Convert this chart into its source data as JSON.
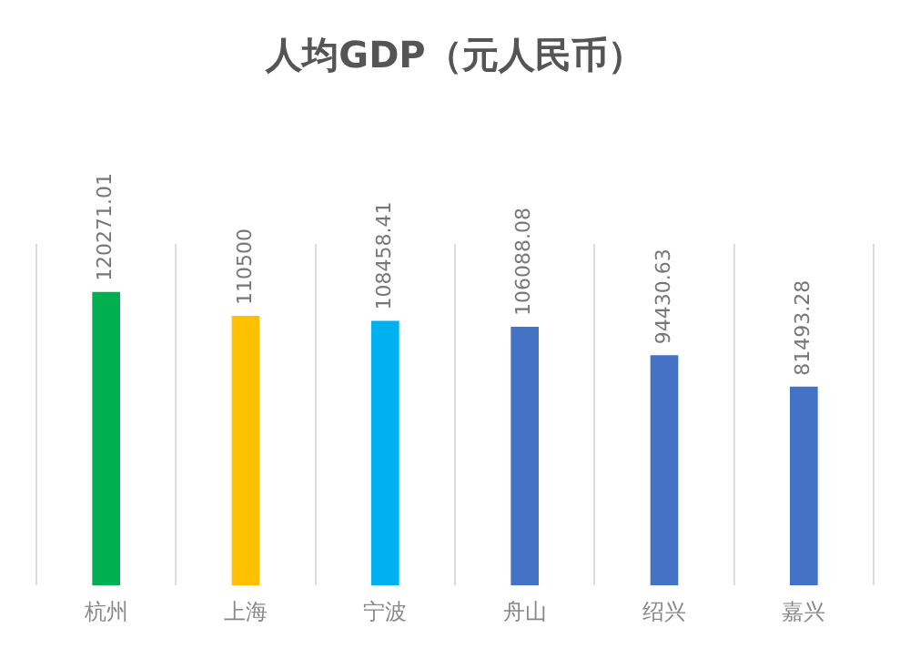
{
  "chart_data": {
    "type": "bar",
    "title": "人均GDP（元人民币）",
    "categories": [
      "杭州",
      "上海",
      "宁波",
      "舟山",
      "绍兴",
      "嘉兴"
    ],
    "values": [
      120271.01,
      110500,
      108458.41,
      106088.08,
      94430.63,
      81493.28
    ],
    "colors": [
      "#00b050",
      "#ffc000",
      "#00b0f0",
      "#4472c4",
      "#4472c4",
      "#4472c4"
    ],
    "ylim": [
      0,
      140000
    ],
    "tick_labels": "x",
    "grid": "x",
    "data_labels": true,
    "legend": false
  }
}
